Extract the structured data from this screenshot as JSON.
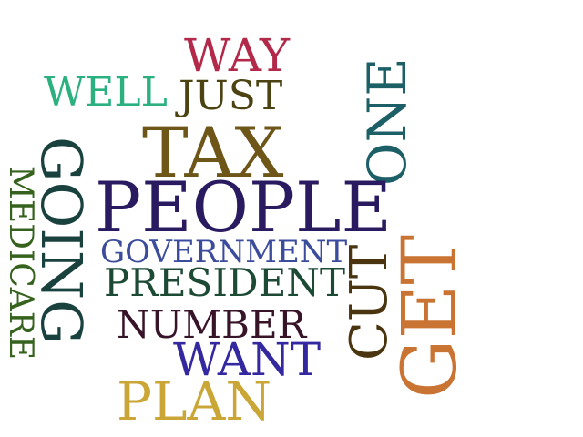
{
  "words": [
    {
      "text": "WAY",
      "color": "#b3294a"
    },
    {
      "text": "WELL",
      "color": "#2bb07f"
    },
    {
      "text": "JUST",
      "color": "#4d4312"
    },
    {
      "text": "TAX",
      "color": "#6e5619"
    },
    {
      "text": "ONE",
      "color": "#1c5f67"
    },
    {
      "text": "GOING",
      "color": "#19423f"
    },
    {
      "text": "MEDICARE",
      "color": "#35621c"
    },
    {
      "text": "PEOPLE",
      "color": "#2a1b61"
    },
    {
      "text": "GOVERNMENT",
      "color": "#3b4c9c"
    },
    {
      "text": "PRESIDENT",
      "color": "#1c4a35"
    },
    {
      "text": "CUT",
      "color": "#4a3510"
    },
    {
      "text": "GET",
      "color": "#c97432"
    },
    {
      "text": "NUMBER",
      "color": "#381428"
    },
    {
      "text": "WANT",
      "color": "#3428a0"
    },
    {
      "text": "PLAN",
      "color": "#c9a635"
    }
  ]
}
